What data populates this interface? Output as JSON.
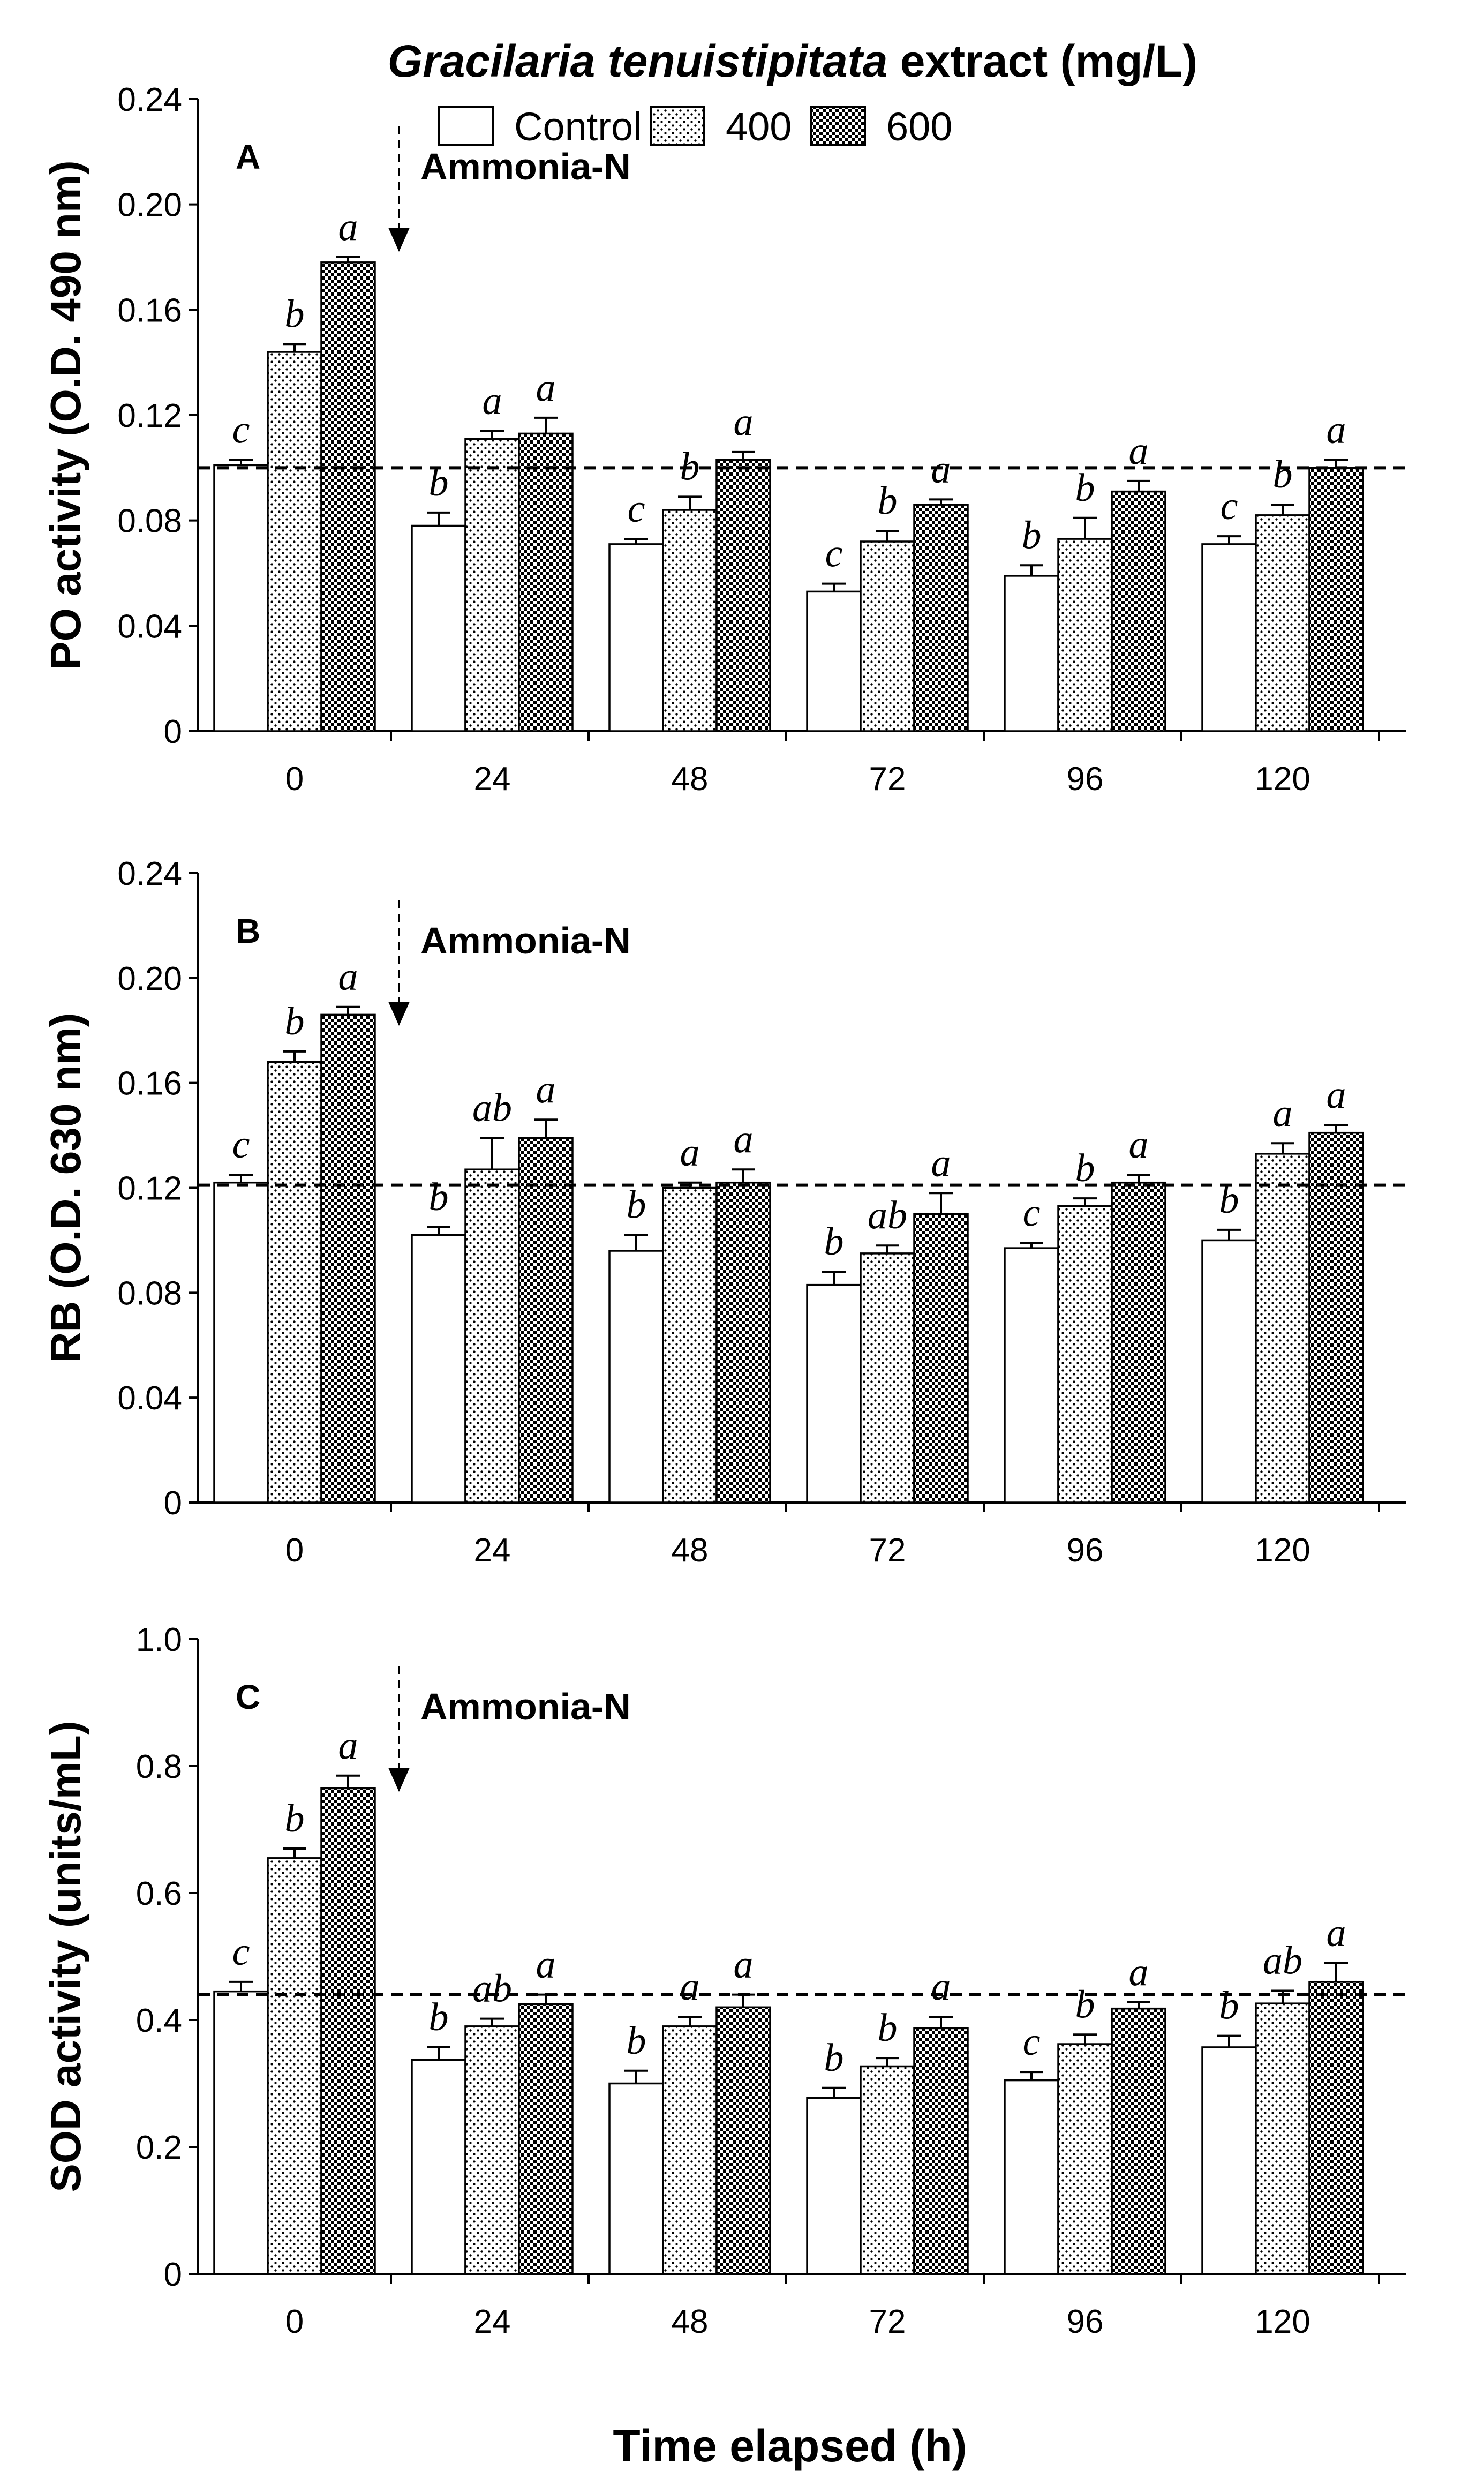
{
  "header": {
    "title_italic": "Gracilaria tenuistipitata",
    "title_rest": " extract (mg/L)"
  },
  "legend": {
    "items": [
      {
        "label": "Control",
        "pattern": "white"
      },
      {
        "label": "400",
        "pattern": "dots"
      },
      {
        "label": "600",
        "pattern": "checker"
      }
    ]
  },
  "xlabel": "Time elapsed (h)",
  "annotation_text": "Ammonia-N",
  "chart_data": [
    {
      "type": "bar",
      "panel_label": "A",
      "ylabel": "PO activity (O.D. 490 nm)",
      "ylim": [
        0,
        0.24
      ],
      "yticks": [
        "0",
        "0.04",
        "0.08",
        "0.12",
        "0.16",
        "0.20",
        "0.24"
      ],
      "categories": [
        "0",
        "24",
        "48",
        "72",
        "96",
        "120"
      ],
      "reference_line": 0.1,
      "series": [
        {
          "name": "Control",
          "values": [
            0.101,
            0.078,
            0.071,
            0.053,
            0.059,
            0.071
          ],
          "errors": [
            0.002,
            0.005,
            0.002,
            0.003,
            0.004,
            0.003
          ],
          "letters": [
            "c",
            "b",
            "c",
            "c",
            "b",
            "c"
          ]
        },
        {
          "name": "400",
          "values": [
            0.144,
            0.111,
            0.084,
            0.072,
            0.073,
            0.082
          ],
          "errors": [
            0.003,
            0.003,
            0.005,
            0.004,
            0.008,
            0.004
          ],
          "letters": [
            "b",
            "a",
            "b",
            "b",
            "b",
            "b"
          ]
        },
        {
          "name": "600",
          "values": [
            0.178,
            0.113,
            0.103,
            0.086,
            0.091,
            0.1
          ],
          "errors": [
            0.002,
            0.006,
            0.003,
            0.002,
            0.004,
            0.003
          ],
          "letters": [
            "a",
            "a",
            "a",
            "a",
            "a",
            "a"
          ]
        }
      ]
    },
    {
      "type": "bar",
      "panel_label": "B",
      "ylabel": "RB (O.D. 630 nm)",
      "ylim": [
        0,
        0.24
      ],
      "yticks": [
        "0",
        "0.04",
        "0.08",
        "0.12",
        "0.16",
        "0.20",
        "0.24"
      ],
      "categories": [
        "0",
        "24",
        "48",
        "72",
        "96",
        "120"
      ],
      "reference_line": 0.121,
      "series": [
        {
          "name": "Control",
          "values": [
            0.122,
            0.102,
            0.096,
            0.083,
            0.097,
            0.1
          ],
          "errors": [
            0.003,
            0.003,
            0.006,
            0.005,
            0.002,
            0.004
          ],
          "letters": [
            "c",
            "b",
            "b",
            "b",
            "c",
            "b"
          ]
        },
        {
          "name": "400",
          "values": [
            0.168,
            0.127,
            0.12,
            0.095,
            0.113,
            0.133
          ],
          "errors": [
            0.004,
            0.012,
            0.002,
            0.003,
            0.003,
            0.004
          ],
          "letters": [
            "b",
            "ab",
            "a",
            "ab",
            "b",
            "a"
          ]
        },
        {
          "name": "600",
          "values": [
            0.186,
            0.139,
            0.122,
            0.11,
            0.122,
            0.141
          ],
          "errors": [
            0.003,
            0.007,
            0.005,
            0.008,
            0.003,
            0.003
          ],
          "letters": [
            "a",
            "a",
            "a",
            "a",
            "a",
            "a"
          ]
        }
      ]
    },
    {
      "type": "bar",
      "panel_label": "C",
      "ylabel": "SOD activity (units/mL)",
      "ylim": [
        0,
        1.0
      ],
      "yticks": [
        "0",
        "0.2",
        "0.4",
        "0.6",
        "0.8",
        "1.0"
      ],
      "categories": [
        "0",
        "24",
        "48",
        "72",
        "96",
        "120"
      ],
      "reference_line": 0.44,
      "series": [
        {
          "name": "Control",
          "values": [
            0.445,
            0.337,
            0.3,
            0.277,
            0.305,
            0.357
          ],
          "errors": [
            0.015,
            0.02,
            0.02,
            0.016,
            0.013,
            0.018
          ],
          "letters": [
            "c",
            "b",
            "b",
            "b",
            "c",
            "b"
          ]
        },
        {
          "name": "400",
          "values": [
            0.655,
            0.39,
            0.39,
            0.327,
            0.362,
            0.426
          ],
          "errors": [
            0.015,
            0.012,
            0.015,
            0.013,
            0.015,
            0.02
          ],
          "letters": [
            "b",
            "ab",
            "a",
            "b",
            "b",
            "ab"
          ]
        },
        {
          "name": "600",
          "values": [
            0.765,
            0.425,
            0.42,
            0.387,
            0.418,
            0.46
          ],
          "errors": [
            0.02,
            0.015,
            0.02,
            0.018,
            0.01,
            0.03
          ],
          "letters": [
            "a",
            "a",
            "a",
            "a",
            "a",
            "a"
          ]
        }
      ]
    }
  ]
}
